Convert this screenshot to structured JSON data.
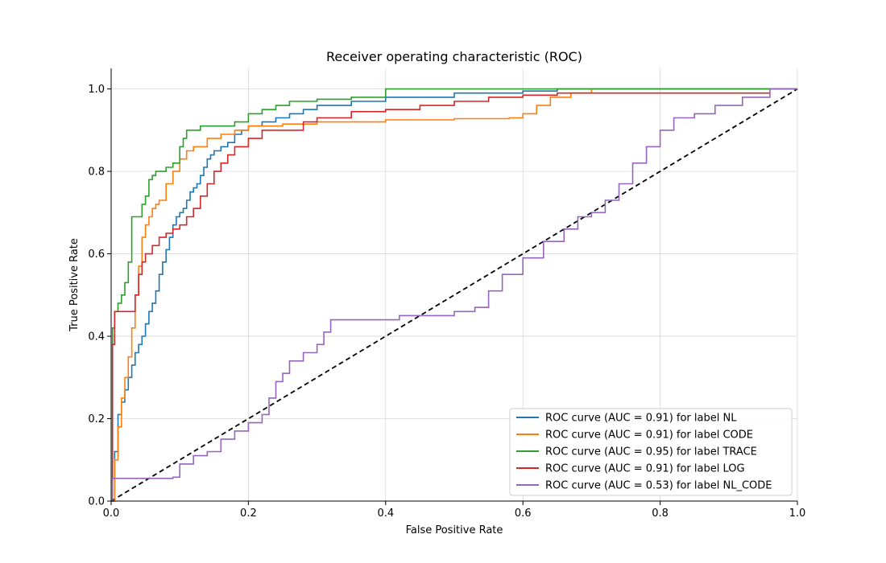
{
  "chart_data": {
    "type": "line",
    "title": "Receiver operating characteristic (ROC)",
    "xlabel": "False Positive Rate",
    "ylabel": "True Positive Rate",
    "xlim": [
      0.0,
      1.0
    ],
    "ylim": [
      0.0,
      1.05
    ],
    "xticks": [
      0.0,
      0.2,
      0.4,
      0.6,
      0.8,
      1.0
    ],
    "yticks": [
      0.0,
      0.2,
      0.4,
      0.6,
      0.8,
      1.0
    ],
    "xtick_labels": [
      "0.0",
      "0.2",
      "0.4",
      "0.6",
      "0.8",
      "1.0"
    ],
    "ytick_labels": [
      "0.0",
      "0.2",
      "0.4",
      "0.6",
      "0.8",
      "1.0"
    ],
    "grid": true,
    "legend_position": "lower-right",
    "diagonal": {
      "x": [
        0,
        1
      ],
      "y": [
        0,
        1
      ],
      "color": "#000000",
      "style": "dashed"
    },
    "series": [
      {
        "name": "ROC curve (AUC = 0.91) for label NL",
        "color": "#1f77b4",
        "x": [
          0.0,
          0.005,
          0.01,
          0.015,
          0.02,
          0.025,
          0.03,
          0.035,
          0.04,
          0.045,
          0.05,
          0.055,
          0.06,
          0.065,
          0.07,
          0.075,
          0.08,
          0.085,
          0.09,
          0.095,
          0.1,
          0.105,
          0.11,
          0.115,
          0.12,
          0.125,
          0.13,
          0.135,
          0.14,
          0.145,
          0.15,
          0.16,
          0.17,
          0.18,
          0.19,
          0.2,
          0.22,
          0.24,
          0.26,
          0.28,
          0.3,
          0.35,
          0.4,
          0.5,
          0.6,
          0.65,
          0.7,
          0.8,
          0.9,
          1.0
        ],
        "y": [
          0.0,
          0.12,
          0.21,
          0.24,
          0.27,
          0.3,
          0.33,
          0.36,
          0.38,
          0.4,
          0.43,
          0.46,
          0.48,
          0.51,
          0.55,
          0.58,
          0.61,
          0.64,
          0.67,
          0.69,
          0.7,
          0.71,
          0.73,
          0.75,
          0.76,
          0.77,
          0.79,
          0.81,
          0.83,
          0.84,
          0.85,
          0.86,
          0.87,
          0.89,
          0.9,
          0.91,
          0.92,
          0.93,
          0.94,
          0.95,
          0.96,
          0.97,
          0.98,
          0.99,
          0.995,
          1.0,
          1.0,
          1.0,
          1.0,
          1.0
        ]
      },
      {
        "name": "ROC curve (AUC = 0.91) for label CODE",
        "color": "#ff7f0e",
        "x": [
          0.0,
          0.005,
          0.01,
          0.015,
          0.02,
          0.025,
          0.03,
          0.035,
          0.04,
          0.045,
          0.05,
          0.055,
          0.06,
          0.065,
          0.07,
          0.08,
          0.09,
          0.1,
          0.11,
          0.12,
          0.14,
          0.16,
          0.18,
          0.2,
          0.25,
          0.3,
          0.4,
          0.5,
          0.58,
          0.6,
          0.62,
          0.64,
          0.67,
          0.7,
          0.8,
          0.9,
          1.0
        ],
        "y": [
          0.0,
          0.1,
          0.18,
          0.25,
          0.3,
          0.35,
          0.42,
          0.5,
          0.57,
          0.64,
          0.67,
          0.69,
          0.71,
          0.72,
          0.73,
          0.77,
          0.8,
          0.83,
          0.85,
          0.86,
          0.88,
          0.89,
          0.9,
          0.91,
          0.915,
          0.92,
          0.925,
          0.928,
          0.93,
          0.94,
          0.96,
          0.98,
          0.99,
          1.0,
          1.0,
          1.0,
          1.0
        ]
      },
      {
        "name": "ROC curve (AUC = 0.95) for label TRACE",
        "color": "#2ca02c",
        "x": [
          0.0,
          0.002,
          0.005,
          0.01,
          0.015,
          0.02,
          0.025,
          0.03,
          0.035,
          0.04,
          0.045,
          0.05,
          0.055,
          0.06,
          0.065,
          0.07,
          0.08,
          0.09,
          0.1,
          0.105,
          0.11,
          0.13,
          0.16,
          0.18,
          0.2,
          0.22,
          0.24,
          0.26,
          0.3,
          0.35,
          0.4,
          0.5,
          0.6,
          0.7,
          0.8,
          0.9,
          1.0
        ],
        "y": [
          0.0,
          0.42,
          0.46,
          0.48,
          0.5,
          0.53,
          0.58,
          0.69,
          0.69,
          0.69,
          0.72,
          0.74,
          0.78,
          0.79,
          0.8,
          0.8,
          0.81,
          0.82,
          0.86,
          0.88,
          0.9,
          0.91,
          0.91,
          0.92,
          0.94,
          0.95,
          0.96,
          0.97,
          0.975,
          0.98,
          1.0,
          1.0,
          1.0,
          1.0,
          1.0,
          1.0,
          1.0
        ]
      },
      {
        "name": "ROC curve (AUC = 0.91) for label LOG",
        "color": "#d62728",
        "x": [
          0.0,
          0.002,
          0.005,
          0.01,
          0.02,
          0.03,
          0.035,
          0.04,
          0.045,
          0.05,
          0.06,
          0.07,
          0.08,
          0.09,
          0.1,
          0.11,
          0.12,
          0.13,
          0.14,
          0.15,
          0.16,
          0.17,
          0.18,
          0.2,
          0.22,
          0.25,
          0.28,
          0.3,
          0.35,
          0.4,
          0.45,
          0.5,
          0.55,
          0.6,
          0.65,
          0.7,
          0.8,
          0.9,
          0.96
        ],
        "y": [
          0.0,
          0.38,
          0.46,
          0.46,
          0.46,
          0.46,
          0.5,
          0.55,
          0.58,
          0.6,
          0.62,
          0.64,
          0.65,
          0.66,
          0.67,
          0.69,
          0.71,
          0.74,
          0.77,
          0.8,
          0.82,
          0.84,
          0.86,
          0.88,
          0.9,
          0.9,
          0.92,
          0.93,
          0.945,
          0.95,
          0.96,
          0.97,
          0.98,
          0.985,
          0.99,
          0.99,
          0.99,
          0.99,
          0.99
        ]
      },
      {
        "name": "ROC curve (AUC = 0.53) for label NL_CODE",
        "color": "#9467bd",
        "x": [
          0.0,
          0.002,
          0.05,
          0.09,
          0.1,
          0.12,
          0.14,
          0.16,
          0.18,
          0.2,
          0.22,
          0.23,
          0.24,
          0.25,
          0.26,
          0.28,
          0.3,
          0.31,
          0.32,
          0.33,
          0.36,
          0.4,
          0.42,
          0.45,
          0.5,
          0.53,
          0.55,
          0.57,
          0.6,
          0.63,
          0.66,
          0.68,
          0.7,
          0.72,
          0.74,
          0.76,
          0.78,
          0.8,
          0.82,
          0.85,
          0.88,
          0.92,
          0.96,
          1.0
        ],
        "y": [
          0.0,
          0.055,
          0.055,
          0.058,
          0.09,
          0.11,
          0.12,
          0.15,
          0.17,
          0.19,
          0.21,
          0.25,
          0.29,
          0.31,
          0.34,
          0.36,
          0.38,
          0.41,
          0.44,
          0.44,
          0.44,
          0.44,
          0.45,
          0.45,
          0.46,
          0.47,
          0.51,
          0.55,
          0.59,
          0.63,
          0.66,
          0.69,
          0.7,
          0.73,
          0.77,
          0.82,
          0.86,
          0.9,
          0.93,
          0.94,
          0.96,
          0.98,
          1.0,
          1.0
        ]
      }
    ]
  }
}
